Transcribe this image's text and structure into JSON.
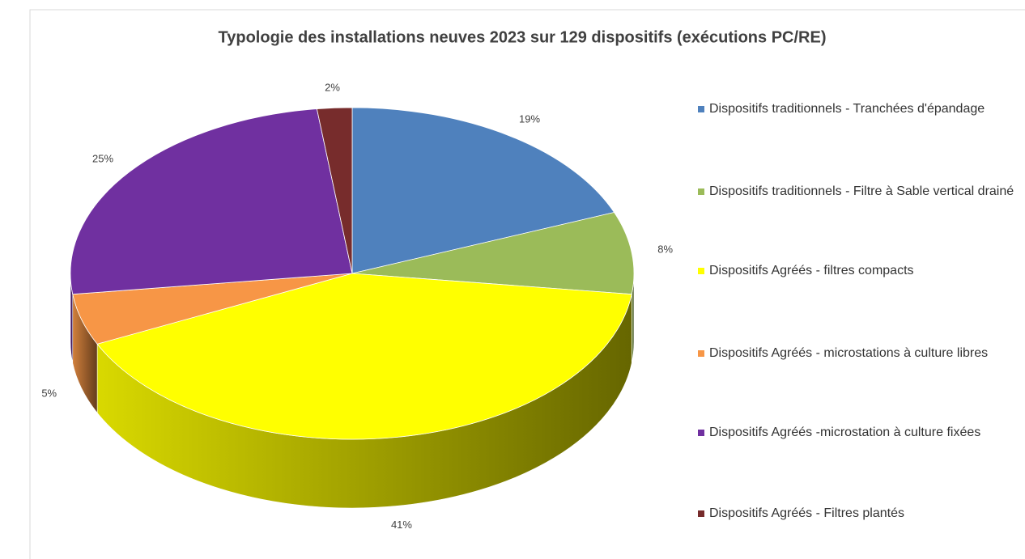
{
  "chart_data": {
    "type": "pie3d",
    "title": "Typologie des installations neuves 2023 sur 129 dispositifs (exécutions PC/RE)",
    "categories": [
      "Dispositifs traditionnels - Tranchées d'épandage",
      "Dispositifs traditionnels - Filtre à Sable vertical drainé",
      "Dispositifs Agréés - filtres compacts",
      "Dispositifs Agréés - microstations à culture libres",
      "Dispositifs Agréés -microstation à culture fixées",
      "Dispositifs Agréés - Filtres plantés"
    ],
    "values": [
      19,
      8,
      41,
      5,
      25,
      2
    ],
    "value_labels": [
      "19%",
      "8%",
      "41%",
      "5%",
      "25%",
      "2%"
    ],
    "colors": [
      "#4f81bd",
      "#9bbb59",
      "#ffff00",
      "#f79646",
      "#7030a0",
      "#772c2c"
    ],
    "legend": "right"
  }
}
